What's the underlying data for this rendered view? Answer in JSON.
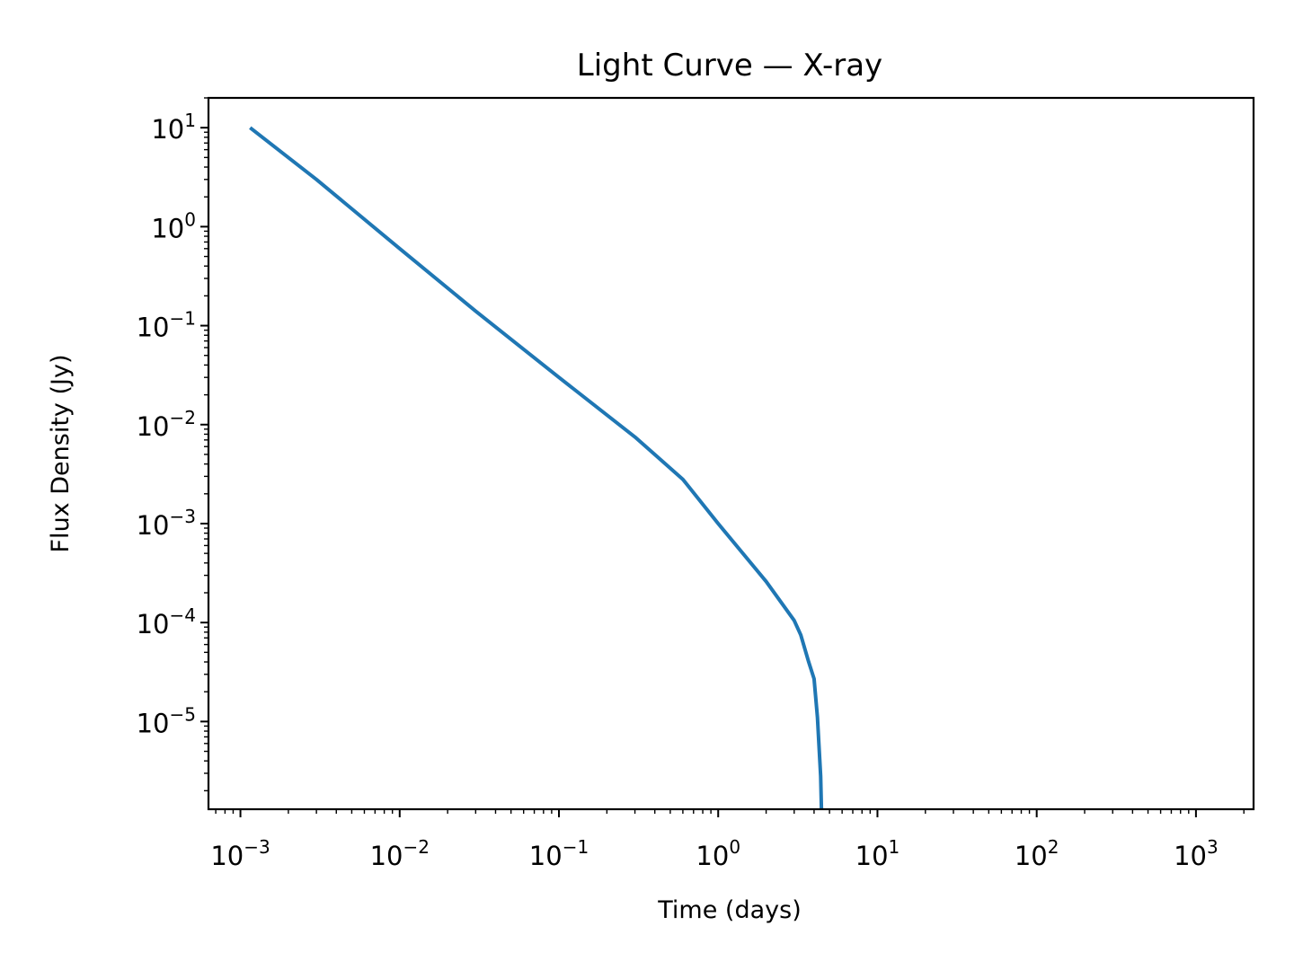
{
  "chart_data": {
    "type": "line",
    "title": "Light Curve — X-ray",
    "xlabel": "Time (days)",
    "ylabel": "Flux Density (Jy)",
    "xscale": "log",
    "yscale": "log",
    "xlim": [
      0.00063,
      2300
    ],
    "ylim": [
      1.3e-06,
      20
    ],
    "grid": false,
    "legend": "none",
    "x_ticks": [
      {
        "value": 0.001,
        "base": "10",
        "exp": "−3"
      },
      {
        "value": 0.01,
        "base": "10",
        "exp": "−2"
      },
      {
        "value": 0.1,
        "base": "10",
        "exp": "−1"
      },
      {
        "value": 1,
        "base": "10",
        "exp": "0"
      },
      {
        "value": 10,
        "base": "10",
        "exp": "1"
      },
      {
        "value": 100,
        "base": "10",
        "exp": "2"
      },
      {
        "value": 1000,
        "base": "10",
        "exp": "3"
      }
    ],
    "y_ticks": [
      {
        "value": 10,
        "base": "10",
        "exp": "1"
      },
      {
        "value": 1,
        "base": "10",
        "exp": "0"
      },
      {
        "value": 0.1,
        "base": "10",
        "exp": "−1"
      },
      {
        "value": 0.01,
        "base": "10",
        "exp": "−2"
      },
      {
        "value": 0.001,
        "base": "10",
        "exp": "−3"
      },
      {
        "value": 0.0001,
        "base": "10",
        "exp": "−4"
      },
      {
        "value": 1e-05,
        "base": "10",
        "exp": "−5"
      }
    ],
    "series": [
      {
        "color": "#1f77b4",
        "x": [
          0.00115,
          0.003,
          0.01,
          0.03,
          0.1,
          0.3,
          0.6,
          1.0,
          2.0,
          3.0,
          3.3,
          3.7,
          4.0,
          4.2,
          4.4,
          4.45
        ],
        "y": [
          10,
          3.0,
          0.6,
          0.14,
          0.03,
          0.0075,
          0.0028,
          0.001,
          0.00026,
          0.000105,
          7.5e-05,
          4e-05,
          2.7e-05,
          1.1e-05,
          2.8e-06,
          1.3e-06
        ]
      }
    ]
  }
}
